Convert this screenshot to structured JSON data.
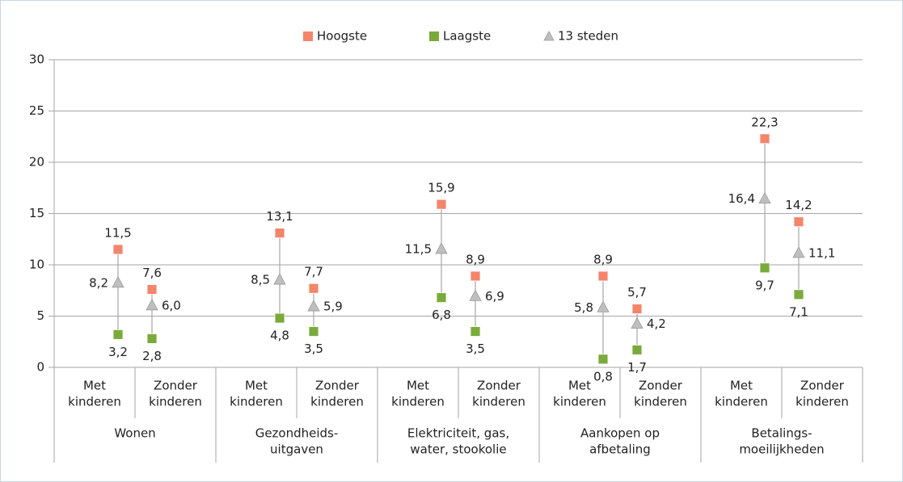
{
  "chart_data": {
    "type": "hilo",
    "categories": [
      [
        "Met",
        "kinderen"
      ],
      [
        "Zonder",
        "kinderen"
      ],
      [
        "Met",
        "kinderen"
      ],
      [
        "Zonder",
        "kinderen"
      ],
      [
        "Met",
        "kinderen"
      ],
      [
        "Zonder",
        "kinderen"
      ],
      [
        "Met",
        "kinderen"
      ],
      [
        "Zonder",
        "kinderen"
      ],
      [
        "Met",
        "kinderen"
      ],
      [
        "Zonder",
        "kinderen"
      ]
    ],
    "groups": [
      [
        "Wonen"
      ],
      [
        "Gezondheids-",
        "uitgaven"
      ],
      [
        "Elektriciteit, gas,",
        "water, stookolie"
      ],
      [
        "Aankopen op",
        "afbetaling"
      ],
      [
        "Betalings-",
        "moeilijkheden"
      ]
    ],
    "series": [
      {
        "name": "Hoogste",
        "color": "#f4856a",
        "marker": "square",
        "values": [
          11.5,
          7.6,
          13.1,
          7.7,
          15.9,
          8.9,
          8.9,
          5.7,
          22.3,
          14.2
        ],
        "value_labels": [
          "11,5",
          "7,6",
          "13,1",
          "7,7",
          "15,9",
          "8,9",
          "8,9",
          "5,7",
          "22,3",
          "14,2"
        ]
      },
      {
        "name": "Laagste",
        "color": "#7aab3a",
        "marker": "square",
        "values": [
          3.2,
          2.8,
          4.8,
          3.5,
          6.8,
          3.5,
          0.8,
          1.7,
          9.7,
          7.1
        ],
        "value_labels": [
          "3,2",
          "2,8",
          "4,8",
          "3,5",
          "6,8",
          "3,5",
          "0,8",
          "1,7",
          "9,7",
          "7,1"
        ]
      },
      {
        "name": "13 steden",
        "color": "#bfbfbf",
        "marker": "triangle",
        "values": [
          8.2,
          6.0,
          8.5,
          5.9,
          11.5,
          6.9,
          5.8,
          4.2,
          16.4,
          11.1
        ],
        "value_labels": [
          "8,2",
          "6,0",
          "8,5",
          "5,9",
          "11,5",
          "6,9",
          "5,8",
          "4,2",
          "16,4",
          "11,1"
        ]
      }
    ],
    "ylim": [
      0,
      30
    ],
    "yticks": [
      0,
      5,
      10,
      15,
      20,
      25,
      30
    ],
    "grid": true,
    "legend": "top"
  }
}
